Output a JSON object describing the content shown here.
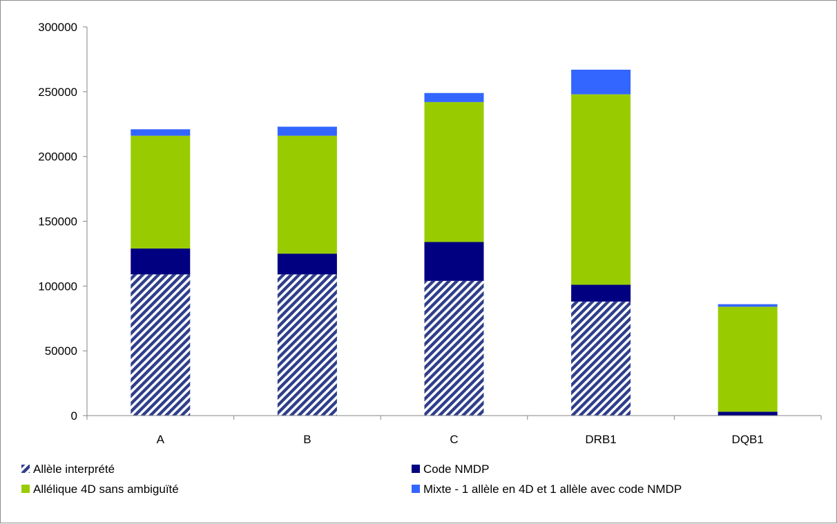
{
  "chart_data": {
    "type": "bar",
    "stacked": true,
    "categories": [
      "A",
      "B",
      "C",
      "DRB1",
      "DQB1"
    ],
    "series": [
      {
        "name": "Allèle interprété",
        "values": [
          109000,
          109000,
          104000,
          88000,
          0
        ],
        "color": "#2E3E8A",
        "pattern": "diagonal-stripes"
      },
      {
        "name": "Code NMDP",
        "values": [
          20000,
          16000,
          30000,
          13000,
          3000
        ],
        "color": "#000080"
      },
      {
        "name": "Allélique 4D sans ambiguïté",
        "values": [
          87000,
          91000,
          108000,
          147000,
          81000
        ],
        "color": "#99CC00"
      },
      {
        "name": "Mixte - 1 allèle en 4D et 1 allèle avec code NMDP",
        "values": [
          5000,
          7000,
          7000,
          19000,
          2000
        ],
        "color": "#3366FF"
      }
    ],
    "ylim": [
      0,
      300000
    ],
    "yticks": [
      "0",
      "50000",
      "100000",
      "150000",
      "200000",
      "250000",
      "300000"
    ],
    "grid": false,
    "legend_position": "bottom"
  }
}
